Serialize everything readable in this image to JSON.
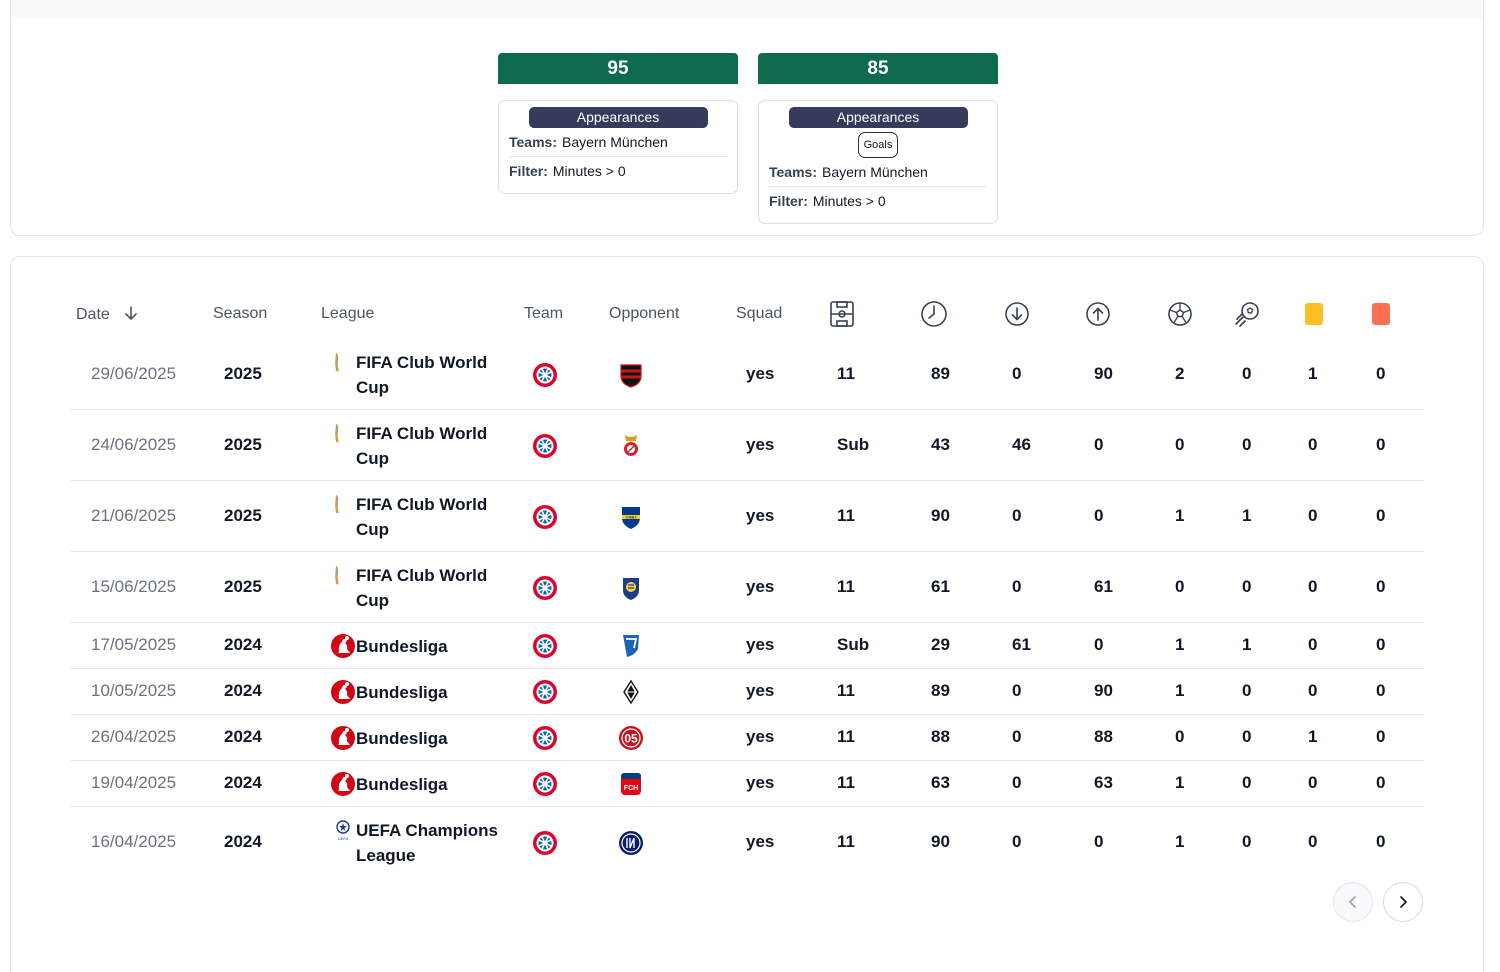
{
  "stats": [
    {
      "value": "95",
      "category": "Appearances",
      "extra": "",
      "teams_label": "Teams:",
      "teams": "Bayern München",
      "filter_label": "Filter:",
      "filter": "Minutes > 0"
    },
    {
      "value": "85",
      "category": "Appearances",
      "extra": "Goals",
      "teams_label": "Teams:",
      "teams": "Bayern München",
      "filter_label": "Filter:",
      "filter": "Minutes > 0"
    }
  ],
  "table": {
    "headers": {
      "date": "Date",
      "season": "Season",
      "league": "League",
      "team": "Team",
      "opponent": "Opponent",
      "squad": "Squad"
    },
    "icon_headers": [
      "lineup-icon",
      "minutes-clock-icon",
      "sub-in-icon",
      "sub-out-icon",
      "goal-ball-icon",
      "assist-icon",
      "yellow-card-icon",
      "red-card-icon"
    ],
    "rows": [
      {
        "date": "29/06/2025",
        "season": "2025",
        "league": "FIFA Club World Cup",
        "league_icon": "trophy",
        "opponent_icon": "flamengo",
        "squad": "yes",
        "lineup": "11",
        "minutes": "89",
        "in": "0",
        "out": "90",
        "goals": "2",
        "assists": "0",
        "yellow": "1",
        "red": "0"
      },
      {
        "date": "24/06/2025",
        "season": "2025",
        "league": "FIFA Club World Cup",
        "league_icon": "trophy",
        "opponent_icon": "benfica",
        "squad": "yes",
        "lineup": "Sub",
        "minutes": "43",
        "in": "46",
        "out": "0",
        "goals": "0",
        "assists": "0",
        "yellow": "0",
        "red": "0"
      },
      {
        "date": "21/06/2025",
        "season": "2025",
        "league": "FIFA Club World Cup",
        "league_icon": "trophy",
        "opponent_icon": "boca",
        "squad": "yes",
        "lineup": "11",
        "minutes": "90",
        "in": "0",
        "out": "0",
        "goals": "1",
        "assists": "1",
        "yellow": "0",
        "red": "0"
      },
      {
        "date": "15/06/2025",
        "season": "2025",
        "league": "FIFA Club World Cup",
        "league_icon": "trophy",
        "opponent_icon": "auckland",
        "squad": "yes",
        "lineup": "11",
        "minutes": "61",
        "in": "0",
        "out": "61",
        "goals": "0",
        "assists": "0",
        "yellow": "0",
        "red": "0"
      },
      {
        "date": "17/05/2025",
        "season": "2024",
        "league": "Bundesliga",
        "league_icon": "bundesliga",
        "opponent_icon": "hoffenheim",
        "squad": "yes",
        "lineup": "Sub",
        "minutes": "29",
        "in": "61",
        "out": "0",
        "goals": "1",
        "assists": "1",
        "yellow": "0",
        "red": "0"
      },
      {
        "date": "10/05/2025",
        "season": "2024",
        "league": "Bundesliga",
        "league_icon": "bundesliga",
        "opponent_icon": "gladbach",
        "squad": "yes",
        "lineup": "11",
        "minutes": "89",
        "in": "0",
        "out": "90",
        "goals": "1",
        "assists": "0",
        "yellow": "0",
        "red": "0"
      },
      {
        "date": "26/04/2025",
        "season": "2024",
        "league": "Bundesliga",
        "league_icon": "bundesliga",
        "opponent_icon": "mainz",
        "squad": "yes",
        "lineup": "11",
        "minutes": "88",
        "in": "0",
        "out": "88",
        "goals": "0",
        "assists": "0",
        "yellow": "1",
        "red": "0"
      },
      {
        "date": "19/04/2025",
        "season": "2024",
        "league": "Bundesliga",
        "league_icon": "bundesliga",
        "opponent_icon": "heidenheim",
        "squad": "yes",
        "lineup": "11",
        "minutes": "63",
        "in": "0",
        "out": "63",
        "goals": "1",
        "assists": "0",
        "yellow": "0",
        "red": "0"
      },
      {
        "date": "16/04/2025",
        "season": "2024",
        "league": "UEFA Champions League",
        "league_icon": "ucl",
        "opponent_icon": "inter",
        "squad": "yes",
        "lineup": "11",
        "minutes": "90",
        "in": "0",
        "out": "0",
        "goals": "1",
        "assists": "0",
        "yellow": "0",
        "red": "0"
      }
    ]
  },
  "colors": {
    "stat_green": "#0d6a4c",
    "pill_navy": "#363b5c",
    "yellow_card": "#fbbf24",
    "red_card": "#fb7150",
    "bayern_red": "#dc052d"
  }
}
